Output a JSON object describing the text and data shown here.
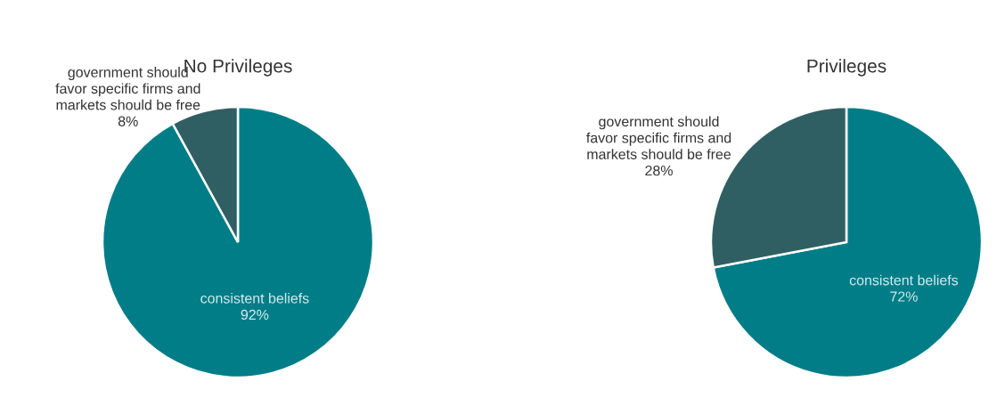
{
  "chart_data": [
    {
      "type": "pie",
      "title": "No Privileges",
      "categories": [
        "consistent beliefs",
        "government should\nfavor specific firms and\nmarkets should be free"
      ],
      "values": [
        92,
        8
      ],
      "colors": [
        "#007d87",
        "#2f5f63"
      ],
      "value_labels": [
        "92%",
        "8%"
      ]
    },
    {
      "type": "pie",
      "title": "Privileges",
      "categories": [
        "consistent beliefs",
        "government should\nfavor specific firms and\nmarkets should be free"
      ],
      "values": [
        72,
        28
      ],
      "colors": [
        "#007d87",
        "#2f5f63"
      ],
      "value_labels": [
        "72%",
        "28%"
      ]
    }
  ]
}
